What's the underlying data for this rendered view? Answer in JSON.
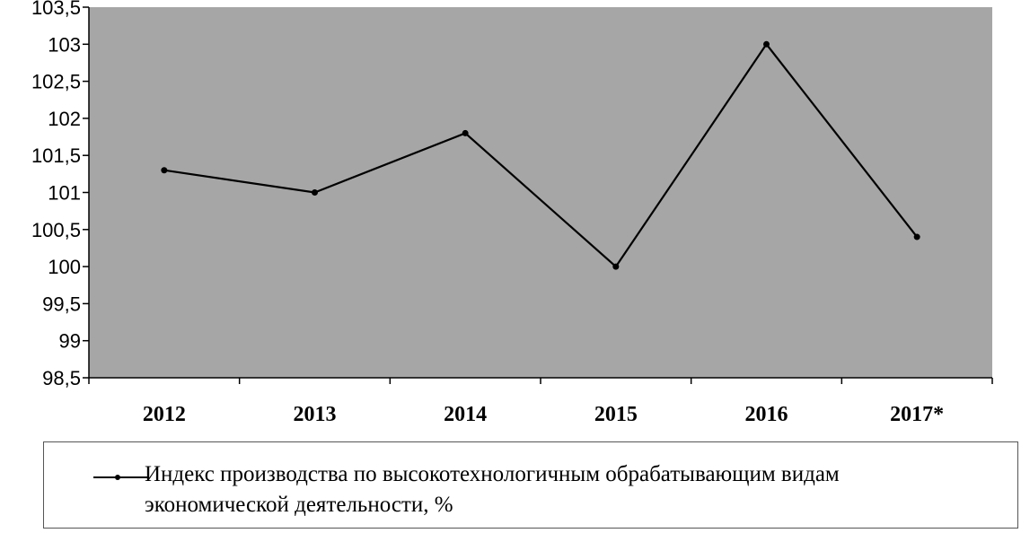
{
  "chart_data": {
    "type": "line",
    "categories": [
      "2012",
      "2013",
      "2014",
      "2015",
      "2016",
      "2017*"
    ],
    "series": [
      {
        "name": "Индекс производства по высокотехнологичным обрабатывающим видам экономической деятельности, %",
        "values": [
          101.3,
          101.0,
          101.8,
          100.0,
          103.0,
          100.4
        ],
        "color": "#000000"
      }
    ],
    "ylim": [
      98.5,
      103.5
    ],
    "yticks": [
      "98,5",
      "99",
      "99,5",
      "100",
      "100,5",
      "101",
      "101,5",
      "102",
      "102,5",
      "103",
      "103,5"
    ],
    "title": "",
    "xlabel": "",
    "ylabel": "",
    "plot_background": "#a6a6a6",
    "grid": false,
    "legend_position": "bottom"
  },
  "legend": {
    "text_line1": "Индекс производства по высокотехнологичным обрабатывающим видам",
    "text_line2": "экономической деятельности, %"
  }
}
